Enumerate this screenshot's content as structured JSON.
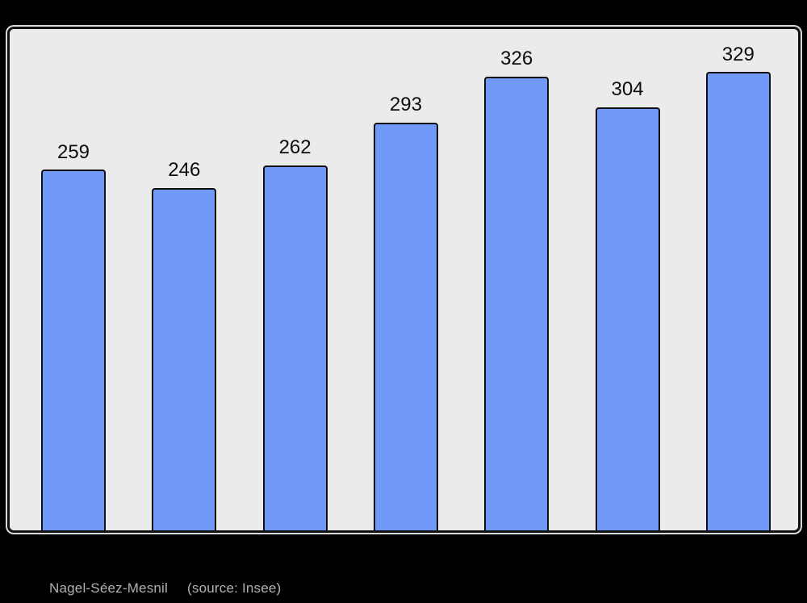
{
  "chart_data": {
    "type": "bar",
    "values": [
      259,
      246,
      262,
      293,
      326,
      304,
      329
    ],
    "bar_labels": [
      "259",
      "246",
      "262",
      "293",
      "326",
      "304",
      "329"
    ],
    "title": "",
    "xlabel": "",
    "ylabel": "",
    "ylim": [
      0,
      360
    ],
    "grid": false,
    "legend": false,
    "x_tick_labels_visible": false,
    "y_axis_visible": false,
    "data_labels_position": "above-bars"
  },
  "caption": {
    "commune": "Nagel-Séez-Mesnil",
    "source": "(source: Insee)"
  },
  "colors": {
    "page_background": "#000000",
    "panel_background": "#ebebeb",
    "panel_border": "#101010",
    "bar_fill": "#7199f8",
    "bar_border": "#101010",
    "bar_label": "#0d0d0d",
    "caption_text": "#b2b2b2"
  }
}
